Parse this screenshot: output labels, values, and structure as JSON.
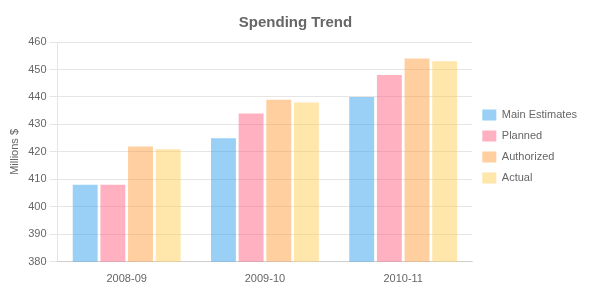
{
  "chart_data": {
    "type": "bar",
    "title": "Spending Trend",
    "ylabel": "Millions $",
    "categories": [
      "2008-09",
      "2009-10",
      "2010-11"
    ],
    "series": [
      {
        "name": "Main Estimates",
        "values": [
          408,
          425,
          440
        ]
      },
      {
        "name": "Planned",
        "values": [
          408,
          434,
          448
        ]
      },
      {
        "name": "Authorized",
        "values": [
          422,
          439,
          454
        ]
      },
      {
        "name": "Actual",
        "values": [
          421,
          438,
          453
        ]
      }
    ],
    "ylim": [
      380,
      460
    ],
    "yticks": [
      380,
      390,
      400,
      410,
      420,
      430,
      440,
      450,
      460
    ],
    "grid": true,
    "legend": "right"
  }
}
